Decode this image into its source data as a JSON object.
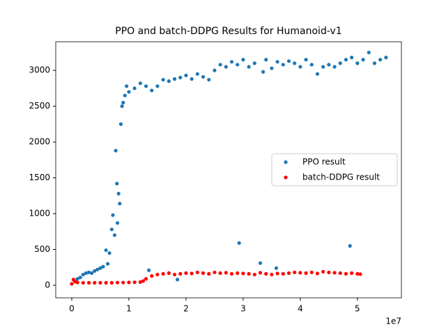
{
  "chart_data": {
    "type": "scatter",
    "title": "PPO and batch-DDPG Results for Humanoid-v1",
    "x_offset_label": "1e7",
    "xlim": [
      -2800000,
      57700000
    ],
    "ylim": [
      -175,
      3400
    ],
    "xticks": [
      0,
      {
        "value": 10000000,
        "label": "1"
      },
      {
        "value": 20000000,
        "label": "2"
      },
      {
        "value": 30000000,
        "label": "3"
      },
      {
        "value": 40000000,
        "label": "4"
      },
      {
        "value": 50000000,
        "label": "5"
      }
    ],
    "yticks": [
      0,
      500,
      1000,
      1500,
      2000,
      2500,
      3000
    ],
    "grid": false,
    "legend": "center right",
    "series": [
      {
        "name": "PPO result",
        "color": "#1f77b4",
        "x": [
          0,
          500000,
          1000000,
          1500000,
          2000000,
          2500000,
          3000000,
          3500000,
          4000000,
          4500000,
          5000000,
          5500000,
          6000000,
          6300000,
          6600000,
          7000000,
          7200000,
          7500000,
          7700000,
          7900000,
          8000000,
          8200000,
          8400000,
          8600000,
          8800000,
          9000000,
          9300000,
          9600000,
          10000000,
          11000000,
          12000000,
          13000000,
          13500000,
          14000000,
          15000000,
          16000000,
          17000000,
          18000000,
          18500000,
          19000000,
          20000000,
          21000000,
          22000000,
          23000000,
          24000000,
          25000000,
          26000000,
          27000000,
          28000000,
          29000000,
          29300000,
          30000000,
          31000000,
          32000000,
          33000000,
          33500000,
          34000000,
          35000000,
          35800000,
          36000000,
          37000000,
          38000000,
          39000000,
          40000000,
          41000000,
          42000000,
          43000000,
          44000000,
          45000000,
          46000000,
          47000000,
          48000000,
          48700000,
          49000000,
          50000000,
          51000000,
          52000000,
          53000000,
          54000000,
          55000000
        ],
        "values": [
          20,
          60,
          90,
          110,
          150,
          170,
          180,
          170,
          200,
          220,
          240,
          260,
          490,
          300,
          450,
          780,
          980,
          700,
          1880,
          1420,
          870,
          1280,
          1140,
          2250,
          2500,
          2550,
          2650,
          2780,
          2700,
          2750,
          2820,
          2780,
          210,
          2720,
          2780,
          2870,
          2850,
          2880,
          80,
          2900,
          2930,
          2880,
          2950,
          2910,
          2870,
          3000,
          3080,
          3050,
          3120,
          3080,
          590,
          3150,
          3050,
          3100,
          310,
          2980,
          3150,
          3030,
          240,
          3120,
          3080,
          3130,
          3100,
          3050,
          3150,
          3080,
          2950,
          3050,
          3080,
          3050,
          3100,
          3150,
          550,
          3180,
          3100,
          3150,
          3250,
          3100,
          3150,
          3180
        ]
      },
      {
        "name": "batch-DDPG result",
        "color": "#ff0000",
        "x": [
          0,
          300000,
          600000,
          1000000,
          2000000,
          3000000,
          4000000,
          5000000,
          6000000,
          7000000,
          8000000,
          9000000,
          10000000,
          11000000,
          12000000,
          12500000,
          13000000,
          14000000,
          15000000,
          16000000,
          17000000,
          18000000,
          19000000,
          20000000,
          21000000,
          22000000,
          23000000,
          24000000,
          25000000,
          26000000,
          27000000,
          28000000,
          29000000,
          30000000,
          31000000,
          32000000,
          33000000,
          34000000,
          35000000,
          36000000,
          37000000,
          38000000,
          39000000,
          40000000,
          41000000,
          42000000,
          43000000,
          44000000,
          45000000,
          46000000,
          47000000,
          48000000,
          49000000,
          50000000,
          50500000
        ],
        "values": [
          20,
          80,
          50,
          40,
          35,
          35,
          35,
          35,
          35,
          35,
          38,
          38,
          40,
          42,
          45,
          60,
          90,
          130,
          150,
          160,
          170,
          150,
          160,
          170,
          165,
          180,
          170,
          160,
          180,
          170,
          175,
          160,
          170,
          165,
          160,
          150,
          175,
          160,
          150,
          165,
          160,
          170,
          180,
          175,
          170,
          180,
          165,
          190,
          180,
          175,
          170,
          160,
          170,
          160,
          155
        ]
      }
    ]
  }
}
